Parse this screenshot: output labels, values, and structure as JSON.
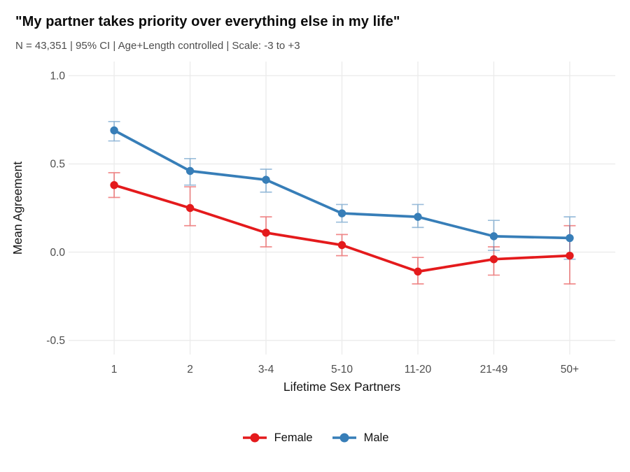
{
  "header": {
    "title": "\"My partner takes priority over everything else in my life\"",
    "subtitle": "N = 43,351 | 95% CI | Age+Length controlled | Scale: -3 to +3"
  },
  "chart_data": {
    "type": "line",
    "title": "\"My partner takes priority over everything else in my life\"",
    "subtitle": "N = 43,351 | 95% CI | Age+Length controlled | Scale: -3 to +3",
    "xlabel": "Lifetime Sex Partners",
    "ylabel": "Mean Agreement",
    "categories": [
      "1",
      "2",
      "3-4",
      "5-10",
      "11-20",
      "21-49",
      "50+"
    ],
    "series": [
      {
        "name": "Female",
        "color": "#E41A1C",
        "values": [
          0.38,
          0.25,
          0.11,
          0.04,
          -0.11,
          -0.04,
          -0.02
        ],
        "ci_low": [
          0.31,
          0.15,
          0.03,
          -0.02,
          -0.18,
          -0.13,
          -0.18
        ],
        "ci_high": [
          0.45,
          0.37,
          0.2,
          0.1,
          -0.03,
          0.03,
          0.15
        ]
      },
      {
        "name": "Male",
        "color": "#377EB8",
        "values": [
          0.69,
          0.46,
          0.41,
          0.22,
          0.2,
          0.09,
          0.08
        ],
        "ci_low": [
          0.63,
          0.38,
          0.34,
          0.17,
          0.14,
          0.01,
          -0.04
        ],
        "ci_high": [
          0.74,
          0.53,
          0.47,
          0.27,
          0.27,
          0.18,
          0.2
        ]
      }
    ],
    "yticks": [
      1.0,
      0.5,
      0.0,
      -0.5
    ],
    "ytick_labels": [
      "1.0",
      "0.5",
      "0.0",
      "-0.5"
    ],
    "ylim": [
      -0.58,
      1.08
    ],
    "grid": true,
    "error_bars": true,
    "legend_position": "bottom"
  },
  "legend": {
    "items": [
      {
        "label": "Female",
        "color": "#E41A1C"
      },
      {
        "label": "Male",
        "color": "#377EB8"
      }
    ]
  },
  "style_colors": {
    "gridline": "#EBEBEB",
    "tick_text": "#4d4d4d",
    "axis_title_text": "#141414"
  }
}
